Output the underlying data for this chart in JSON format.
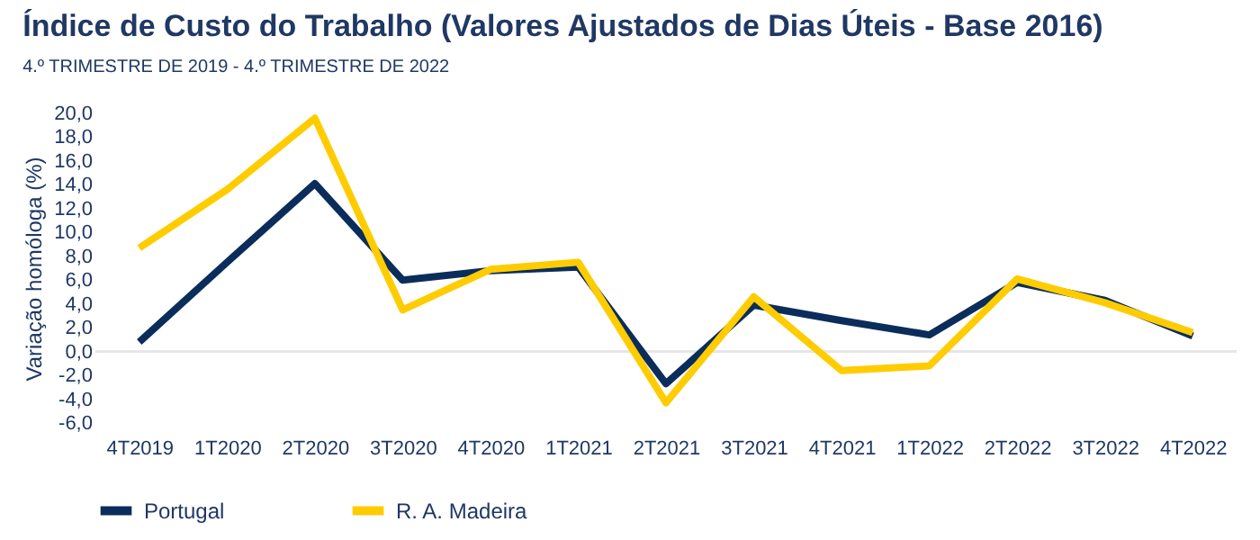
{
  "chart_data": {
    "type": "line",
    "title": "Índice de Custo do Trabalho (Valores Ajustados de Dias Úteis - Base 2016)",
    "subtitle": "4.º TRIMESTRE DE 2019 - 4.º TRIMESTRE DE 2022",
    "ylabel": "Variação homóloga (%)",
    "categories": [
      "4T2019",
      "1T2020",
      "2T2020",
      "3T2020",
      "4T2020",
      "1T2021",
      "2T2021",
      "3T2021",
      "4T2021",
      "1T2022",
      "2T2022",
      "3T2022",
      "4T2022"
    ],
    "series": [
      {
        "name": "Portugal",
        "color": "#0b2d5b",
        "values": [
          0.8,
          7.5,
          14.1,
          6.0,
          6.8,
          7.1,
          -2.7,
          3.9,
          2.6,
          1.4,
          5.8,
          4.3,
          1.3
        ]
      },
      {
        "name": "R. A. Madeira",
        "color": "#ffcc00",
        "values": [
          8.7,
          13.6,
          19.6,
          3.5,
          6.9,
          7.5,
          -4.3,
          4.6,
          -1.6,
          -1.2,
          6.1,
          4.1,
          1.6
        ]
      }
    ],
    "ylim": [
      -6,
      20
    ],
    "yticks": [
      {
        "value": -6,
        "label": "-6,0"
      },
      {
        "value": -4,
        "label": "-4,0"
      },
      {
        "value": -2,
        "label": "-2,0"
      },
      {
        "value": 0,
        "label": "0,0"
      },
      {
        "value": 2,
        "label": "2,0"
      },
      {
        "value": 4,
        "label": "4,0"
      },
      {
        "value": 6,
        "label": "6,0"
      },
      {
        "value": 8,
        "label": "8,0"
      },
      {
        "value": 10,
        "label": "10,0"
      },
      {
        "value": 12,
        "label": "12,0"
      },
      {
        "value": 14,
        "label": "14,0"
      },
      {
        "value": 16,
        "label": "16,0"
      },
      {
        "value": 18,
        "label": "18,0"
      },
      {
        "value": 20,
        "label": "20,0"
      }
    ],
    "ref_lines": [
      {
        "axis": "y",
        "value": 0,
        "color": "#e6e6e6"
      }
    ],
    "grid": false,
    "legend": "bottom",
    "marker": "none",
    "line_style": "solid"
  }
}
